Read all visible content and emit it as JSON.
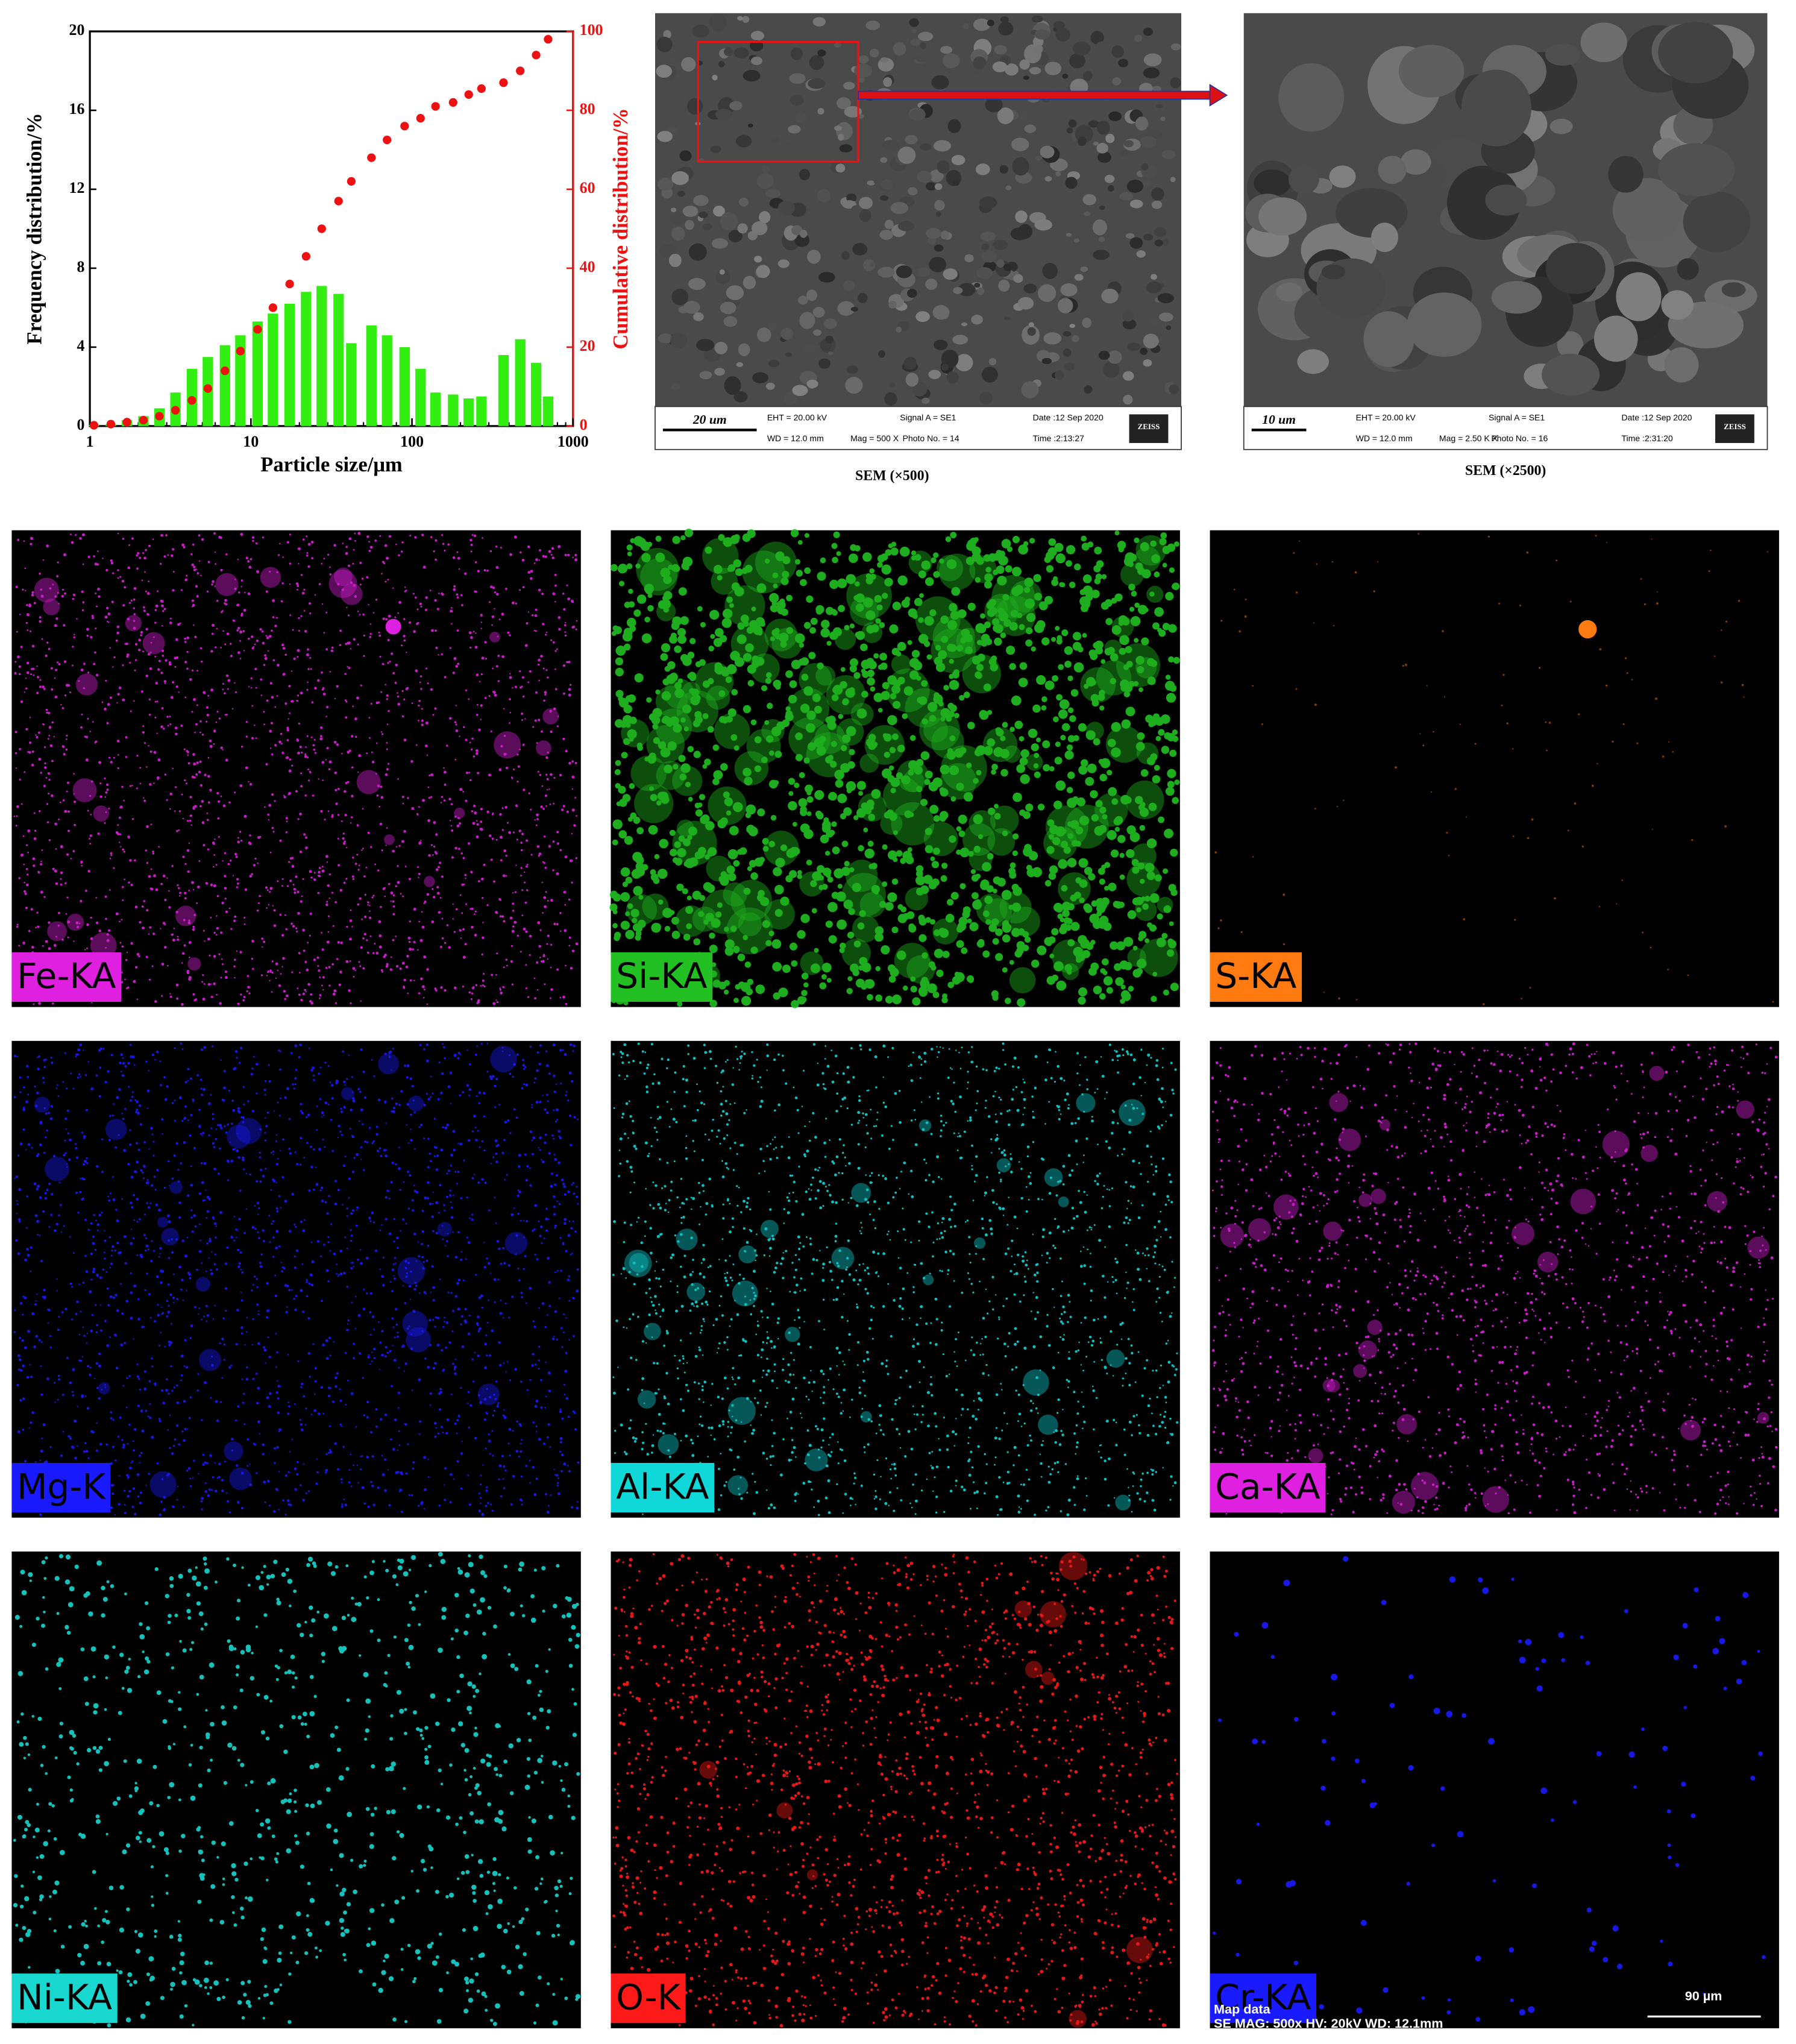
{
  "chart_data": {
    "type": "bar",
    "xlabel": "Particle size/μm",
    "ylabel": "Frequency distribution/%",
    "y2label": "Cumulative distribution/%",
    "xscale": "log",
    "xlim": [
      1,
      1000
    ],
    "xticks": [
      1,
      10,
      100,
      1000
    ],
    "ylim": [
      0,
      20
    ],
    "yticks": [
      0,
      4,
      8,
      12,
      16,
      20
    ],
    "y2lim": [
      0,
      100
    ],
    "y2ticks": [
      0,
      20,
      40,
      60,
      80,
      100
    ],
    "x": [
      1.06,
      1.35,
      1.7,
      2.15,
      2.7,
      3.4,
      4.3,
      5.4,
      6.9,
      8.6,
      11,
      13.7,
      17.4,
      22,
      27.5,
      35,
      42,
      56,
      70,
      90,
      113,
      140,
      180,
      225,
      270,
      370,
      470,
      590,
      700
    ],
    "series": [
      {
        "type": "bar",
        "color": "#33ee11",
        "values": [
          0.05,
          0.1,
          0.3,
          0.5,
          0.9,
          1.7,
          2.9,
          3.5,
          4.1,
          4.6,
          5.3,
          5.7,
          6.2,
          6.8,
          7.1,
          6.7,
          4.2,
          5.1,
          4.6,
          4.0,
          2.9,
          1.7,
          1.6,
          1.4,
          1.5,
          3.6,
          4.4,
          3.2,
          1.5
        ]
      },
      {
        "type": "scatter",
        "axis": "y2",
        "color": "#ee1111",
        "values": [
          0.2,
          0.5,
          1,
          1.5,
          2.5,
          4,
          6.5,
          9.5,
          14,
          19,
          24.5,
          30,
          36,
          43,
          50,
          57,
          62,
          68,
          72.5,
          76,
          78,
          81,
          82,
          84,
          85.5,
          87,
          90,
          94,
          98
        ]
      }
    ]
  },
  "sem_panels": [
    {
      "caption": "SEM (×500)",
      "scale": "20 um",
      "info": [
        "EHT = 20.00 kV",
        "Signal A = SE1",
        "Date :12 Sep 2020",
        "WD = 12.0 mm",
        "Mag =  500 X",
        "Photo No. = 14",
        "Time :2:13:27"
      ],
      "logo": "ZEISS"
    },
    {
      "caption": "SEM (×2500)",
      "scale": "10 um",
      "info": [
        "EHT = 20.00 kV",
        "Signal A = SE1",
        "Date :12 Sep 2020",
        "WD = 12.0 mm",
        "Mag =  2.50 K X",
        "Photo No. = 16",
        "Time :2:31:20"
      ],
      "logo": "ZEISS"
    }
  ],
  "eds_maps": [
    {
      "label": "Fe-KA",
      "color": "#e020e0"
    },
    {
      "label": "Si-KA",
      "color": "#22c022"
    },
    {
      "label": "S-KA",
      "color": "#ff7a10"
    },
    {
      "label": "Mg-K",
      "color": "#1a1aff"
    },
    {
      "label": "Al-KA",
      "color": "#10d8d8"
    },
    {
      "label": "Ca-KA",
      "color": "#e020e0"
    },
    {
      "label": "Ni-KA",
      "color": "#18d8d0"
    },
    {
      "label": "O-K",
      "color": "#ff1a1a"
    },
    {
      "label": "Cr-KA",
      "color": "#1a1aff"
    }
  ],
  "map_footer": {
    "title": "Map data",
    "details": "SE  MAG: 500x  HV: 20kV  WD: 12.1mm",
    "scale": "90 µm"
  }
}
